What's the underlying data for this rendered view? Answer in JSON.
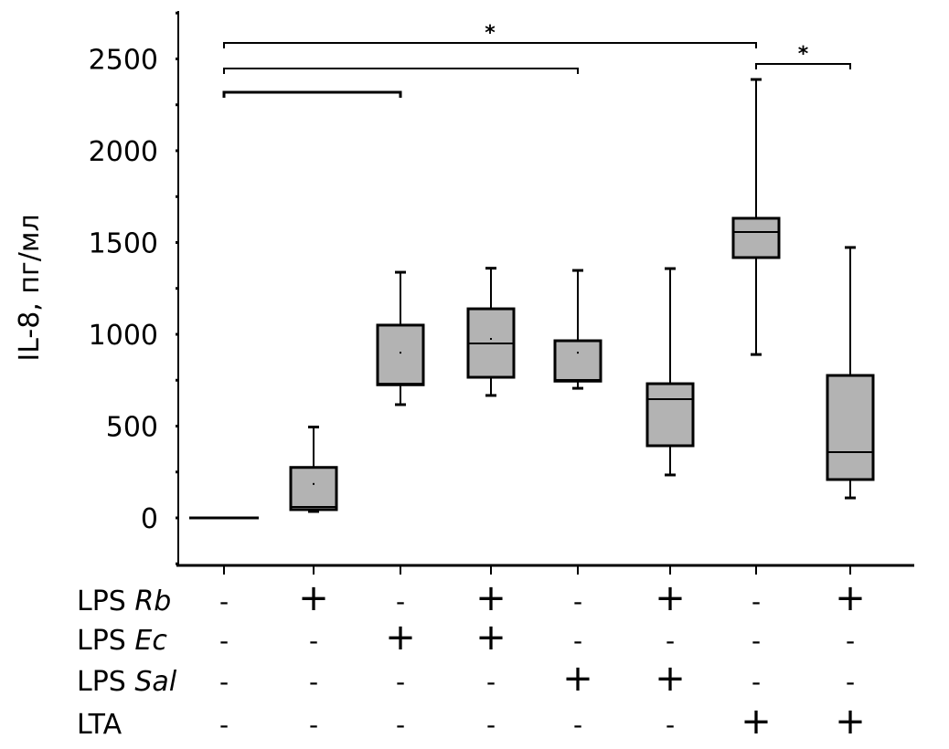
{
  "chart_data": {
    "type": "box",
    "ylabel": "IL-8, пг/мл",
    "ylim": [
      -250,
      2750
    ],
    "yticks": [
      0,
      500,
      1000,
      1500,
      2000,
      2500
    ],
    "grid": false,
    "colors": {
      "box_fill": "#b3b3b3",
      "line": "#000000"
    },
    "boxes": [
      {
        "min": 0,
        "q1": 0,
        "median": 0,
        "q3": 0,
        "max": 0,
        "mean": null
      },
      {
        "min": 35,
        "q1": 45,
        "median": 60,
        "q3": 275,
        "max": 495,
        "mean": 185
      },
      {
        "min": 617,
        "q1": 725,
        "median": 731,
        "q3": 1050,
        "max": 1338,
        "mean": 900
      },
      {
        "min": 667,
        "q1": 766,
        "median": 950,
        "q3": 1139,
        "max": 1360,
        "mean": 975
      },
      {
        "min": 706,
        "q1": 745,
        "median": 751,
        "q3": 965,
        "max": 1348,
        "mean": 900
      },
      {
        "min": 234,
        "q1": 393,
        "median": 647,
        "q3": 731,
        "max": 1358,
        "mean": null
      },
      {
        "min": 890,
        "q1": 1418,
        "median": 1557,
        "q3": 1632,
        "max": 2388,
        "mean": null
      },
      {
        "min": 109,
        "q1": 209,
        "median": 358,
        "q3": 776,
        "max": 1473,
        "mean": null
      }
    ],
    "factors": [
      {
        "label": "LPS ",
        "label_italic": "Rb",
        "values": [
          "-",
          "+",
          "-",
          "+",
          "-",
          "+",
          "-",
          "+"
        ]
      },
      {
        "label": "LPS ",
        "label_italic": "Ec",
        "values": [
          "-",
          "-",
          "+",
          "+",
          "-",
          "-",
          "-",
          "-"
        ]
      },
      {
        "label": "LPS ",
        "label_italic": "Sal",
        "values": [
          "-",
          "-",
          "-",
          "-",
          "+",
          "+",
          "-",
          "-"
        ]
      },
      {
        "label": "LTA",
        "label_italic": "",
        "values": [
          "-",
          "-",
          "-",
          "-",
          "-",
          "-",
          "+",
          "+"
        ]
      }
    ],
    "significance": [
      {
        "from": 1,
        "to": 3,
        "label": ""
      },
      {
        "from": 1,
        "to": 5,
        "label": ""
      },
      {
        "from": 1,
        "to": 7,
        "label": "*"
      },
      {
        "from": 7,
        "to": 8,
        "label": "*"
      }
    ]
  }
}
